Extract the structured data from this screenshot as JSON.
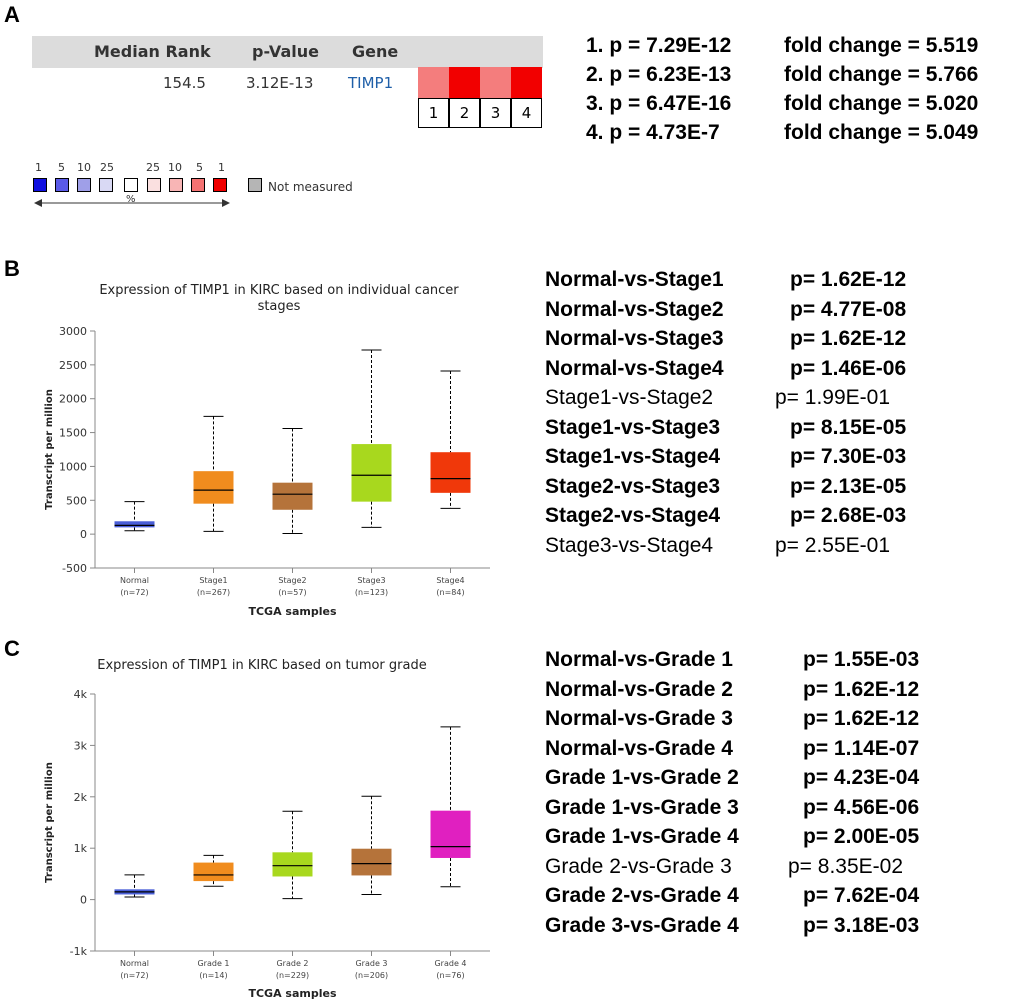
{
  "panels": {
    "a": "A",
    "b": "B",
    "c": "C"
  },
  "oncomine": {
    "headers": {
      "median_rank": "Median Rank",
      "p_value": "p-Value",
      "gene": "Gene"
    },
    "row": {
      "median_rank": "154.5",
      "p_value": "3.12E-13",
      "gene": "TIMP1"
    },
    "cells": [
      {
        "label": "1",
        "color": "#f47d7d"
      },
      {
        "label": "2",
        "color": "#f20000"
      },
      {
        "label": "3",
        "color": "#f47d7d"
      },
      {
        "label": "4",
        "color": "#f20000"
      }
    ],
    "legend": {
      "numbers": [
        "1",
        "5",
        "10",
        "25",
        "25",
        "10",
        "5",
        "1"
      ],
      "colors": [
        "#1010e0",
        "#5a5ae8",
        "#9f9fe8",
        "#d9d9f4",
        "#ffffff",
        "#fae0e0",
        "#f8b5b5",
        "#f47272",
        "#f00000"
      ],
      "not_measured_color": "#b5b5b5",
      "not_measured_label": "Not measured",
      "percent": "%"
    },
    "fold_changes": [
      {
        "p": "1. p = 7.29E-12",
        "fc": "fold change = 5.519"
      },
      {
        "p": "2. p = 6.23E-13",
        "fc": "fold change = 5.766"
      },
      {
        "p": "3. p = 6.47E-16",
        "fc": "fold change = 5.020"
      },
      {
        "p": "4. p = 4.73E-7",
        "fc": "fold change = 5.049"
      }
    ]
  },
  "stage_stats": [
    {
      "cmp": "Normal-vs-Stage1",
      "p": "p= 1.62E-12",
      "bold": true
    },
    {
      "cmp": "Normal-vs-Stage2",
      "p": "p= 4.77E-08",
      "bold": true
    },
    {
      "cmp": "Normal-vs-Stage3",
      "p": "p= 1.62E-12",
      "bold": true
    },
    {
      "cmp": "Normal-vs-Stage4",
      "p": "p= 1.46E-06",
      "bold": true
    },
    {
      "cmp": "Stage1-vs-Stage2",
      "p": "p= 1.99E-01",
      "bold": false
    },
    {
      "cmp": "Stage1-vs-Stage3",
      "p": "p= 8.15E-05",
      "bold": true
    },
    {
      "cmp": "Stage1-vs-Stage4",
      "p": "p= 7.30E-03",
      "bold": true
    },
    {
      "cmp": "Stage2-vs-Stage3",
      "p": "p= 2.13E-05",
      "bold": true
    },
    {
      "cmp": "Stage2-vs-Stage4",
      "p": "p= 2.68E-03",
      "bold": true
    },
    {
      "cmp": "Stage3-vs-Stage4",
      "p": "p= 2.55E-01",
      "bold": false
    }
  ],
  "grade_stats": [
    {
      "cmp": "Normal-vs-Grade 1",
      "p": "p= 1.55E-03",
      "bold": true
    },
    {
      "cmp": "Normal-vs-Grade 2",
      "p": "p= 1.62E-12",
      "bold": true
    },
    {
      "cmp": "Normal-vs-Grade 3",
      "p": "p= 1.62E-12",
      "bold": true
    },
    {
      "cmp": "Normal-vs-Grade 4",
      "p": "p= 1.14E-07",
      "bold": true
    },
    {
      "cmp": "Grade 1-vs-Grade 2",
      "p": "p= 4.23E-04",
      "bold": true
    },
    {
      "cmp": "Grade 1-vs-Grade 3",
      "p": "p= 4.56E-06",
      "bold": true
    },
    {
      "cmp": "Grade 1-vs-Grade 4",
      "p": "p= 2.00E-05",
      "bold": true
    },
    {
      "cmp": "Grade 2-vs-Grade 3",
      "p": "p= 8.35E-02",
      "bold": false
    },
    {
      "cmp": "Grade 2-vs-Grade 4",
      "p": "p= 7.62E-04",
      "bold": true
    },
    {
      "cmp": "Grade 3-vs-Grade 4",
      "p": "p= 3.18E-03",
      "bold": true
    }
  ],
  "chart_data": [
    {
      "type": "box",
      "title": "Expression of TIMP1 in KIRC based on individual cancer stages",
      "title_lines": [
        "Expression of TIMP1 in KIRC based on individual cancer",
        "stages"
      ],
      "xlabel": "TCGA samples",
      "ylabel": "Transcript per million",
      "ylim": [
        -500,
        3000
      ],
      "yticks": [
        -500,
        0,
        500,
        1000,
        1500,
        2000,
        2500,
        3000
      ],
      "ytick_labels": [
        "-500",
        "0",
        "500",
        "1000",
        "1500",
        "2000",
        "2500",
        "3000"
      ],
      "categories": [
        "Normal",
        "Stage1",
        "Stage2",
        "Stage3",
        "Stage4"
      ],
      "counts": [
        "(n=72)",
        "(n=267)",
        "(n=57)",
        "(n=123)",
        "(n=84)"
      ],
      "colors": [
        "#4a5fd8",
        "#f08c1e",
        "#b5733a",
        "#a8d81e",
        "#f0380a"
      ],
      "boxes": [
        {
          "min": 50,
          "q1": 100,
          "median": 130,
          "q3": 190,
          "max": 480
        },
        {
          "min": 40,
          "q1": 450,
          "median": 650,
          "q3": 930,
          "max": 1740
        },
        {
          "min": 10,
          "q1": 360,
          "median": 590,
          "q3": 760,
          "max": 1560
        },
        {
          "min": 100,
          "q1": 480,
          "median": 870,
          "q3": 1330,
          "max": 2720
        },
        {
          "min": 380,
          "q1": 610,
          "median": 820,
          "q3": 1210,
          "max": 2410
        }
      ]
    },
    {
      "type": "box",
      "title": "Expression of TIMP1 in KIRC based on tumor grade",
      "title_lines": [
        "Expression of TIMP1 in KIRC based on tumor grade"
      ],
      "xlabel": "TCGA samples",
      "ylabel": "Transcript per million",
      "ylim": [
        -1000,
        4000
      ],
      "yticks": [
        -1000,
        0,
        1000,
        2000,
        3000,
        4000
      ],
      "ytick_labels": [
        "-1k",
        "0",
        "1k",
        "2k",
        "3k",
        "4k"
      ],
      "categories": [
        "Normal",
        "Grade 1",
        "Grade 2",
        "Grade 3",
        "Grade 4"
      ],
      "counts": [
        "(n=72)",
        "(n=14)",
        "(n=229)",
        "(n=206)",
        "(n=76)"
      ],
      "colors": [
        "#4a5fd8",
        "#f08c1e",
        "#a8d81e",
        "#b5733a",
        "#e020c0"
      ],
      "boxes": [
        {
          "min": 50,
          "q1": 100,
          "median": 150,
          "q3": 200,
          "max": 480
        },
        {
          "min": 260,
          "q1": 360,
          "median": 480,
          "q3": 720,
          "max": 860
        },
        {
          "min": 20,
          "q1": 450,
          "median": 660,
          "q3": 920,
          "max": 1720
        },
        {
          "min": 100,
          "q1": 470,
          "median": 700,
          "q3": 990,
          "max": 2010
        },
        {
          "min": 250,
          "q1": 810,
          "median": 1030,
          "q3": 1730,
          "max": 3360
        }
      ]
    }
  ]
}
